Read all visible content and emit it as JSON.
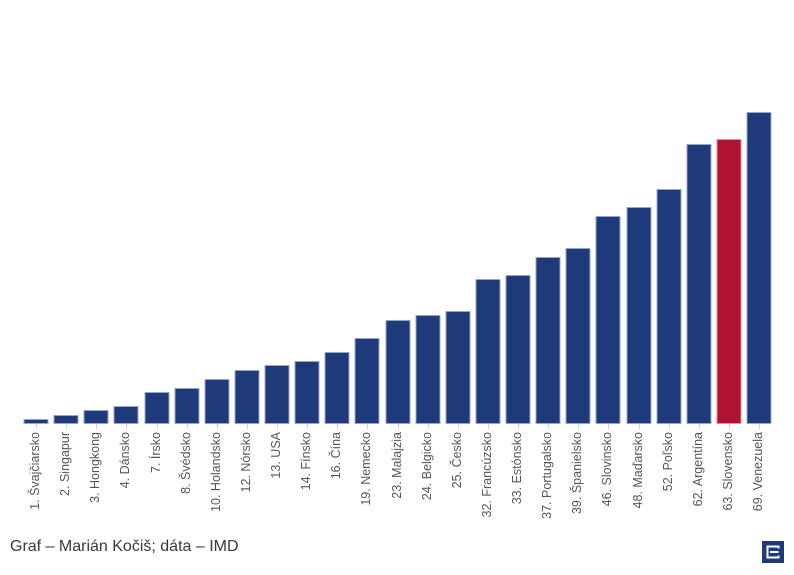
{
  "chart_data": {
    "type": "bar",
    "categories": [
      "1. Švajčiarsko",
      "2. Singapur",
      "3. Hongkong",
      "4. Dánsko",
      "7. Írsko",
      "8. Švédsko",
      "10. Holandsko",
      "12. Nórsko",
      "13. USA",
      "14. Fínsko",
      "16. Čína",
      "19. Nemecko",
      "23. Malajzia",
      "24. Belgicko",
      "25. Česko",
      "32. Francúzsko",
      "33. Estónsko",
      "37. Portugalsko",
      "39. Španielsko",
      "46. Slovinsko",
      "48. Maďarsko",
      "52. Poľsko",
      "62. Argentína",
      "63. Slovensko",
      "69. Venezuela"
    ],
    "values": [
      1,
      2,
      3,
      4,
      7,
      8,
      10,
      12,
      13,
      14,
      16,
      19,
      23,
      24,
      25,
      32,
      33,
      37,
      39,
      46,
      48,
      52,
      62,
      63,
      69
    ],
    "highlight_category": "63. Slovensko",
    "bar_color": "#1e3a7a",
    "highlight_color": "#b01231",
    "tick_color": "#d2d2d2",
    "label_color": "#53565a",
    "title": "",
    "xlabel": "",
    "ylabel": "",
    "ylim": [
      0,
      69
    ],
    "grid": false,
    "legend": false,
    "orientation": "vertical",
    "bar_order": "ascending by rank"
  },
  "caption": "Graf – Marián Kočiš; dáta – IMD",
  "logo": {
    "name": "e-square-publisher-logo",
    "background_color": "#1e3a7a",
    "glyph_color": "#ffffff"
  }
}
